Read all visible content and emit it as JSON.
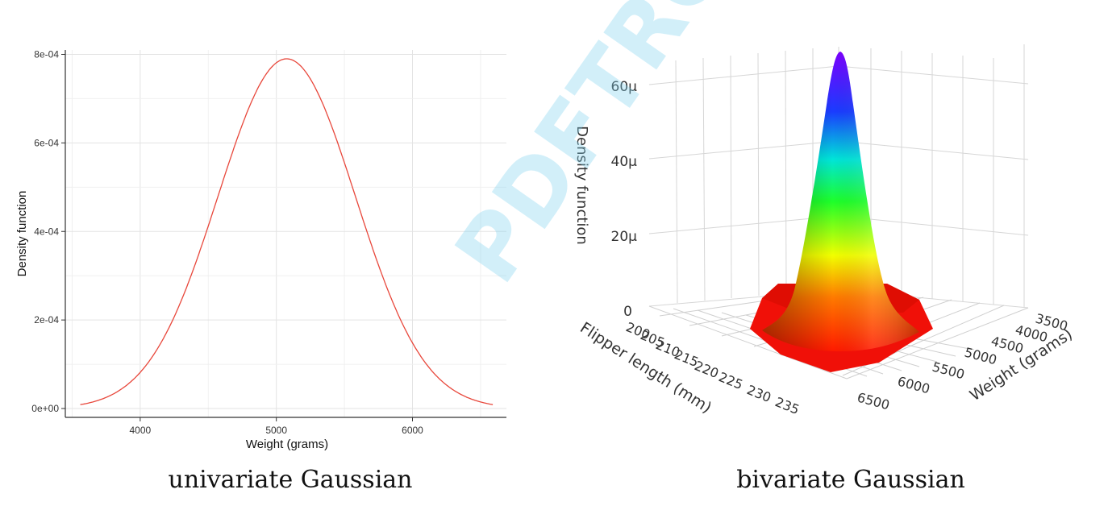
{
  "chart_data": [
    {
      "type": "line",
      "xlabel": "Weight (grams)",
      "ylabel": "Density function",
      "xlim": [
        3450,
        6690
      ],
      "ylim": [
        -2e-05,
        0.00081
      ],
      "x_ticks": [
        4000,
        5000,
        6000
      ],
      "x_tick_labels": [
        "4000",
        "5000",
        "6000"
      ],
      "y_ticks": [
        0,
        0.0002,
        0.0004,
        0.0006,
        0.0008
      ],
      "y_tick_labels": [
        "0e+00",
        "2e-04",
        "4e-04",
        "6e-04",
        "8e-04"
      ],
      "grid": true,
      "series": [
        {
          "color": "#e8473b",
          "distribution": "normal",
          "mean": 5076,
          "sd": 505,
          "x_range": [
            3560,
            6590
          ]
        }
      ],
      "caption": "univariate Gaussian"
    },
    {
      "type": "surface3d",
      "zlabel": "Density function",
      "xlabel": "Flipper length (mm)",
      "ylabel": "Weight (grams)",
      "x_ticks": [
        "200",
        "205",
        "210",
        "215",
        "220",
        "225",
        "230",
        "235"
      ],
      "y_ticks": [
        "3500",
        "4000",
        "4500",
        "5000",
        "5500",
        "6000",
        "6500"
      ],
      "z_ticks": [
        "0",
        "20μ",
        "40μ",
        "60μ"
      ],
      "colorscale": [
        "#ff0000",
        "#ff8800",
        "#ffff00",
        "#00ff00",
        "#00ffff",
        "#0000ff",
        "#8000ff"
      ],
      "caption": "bivariate Gaussian"
    }
  ],
  "watermark": "PDFTRON"
}
